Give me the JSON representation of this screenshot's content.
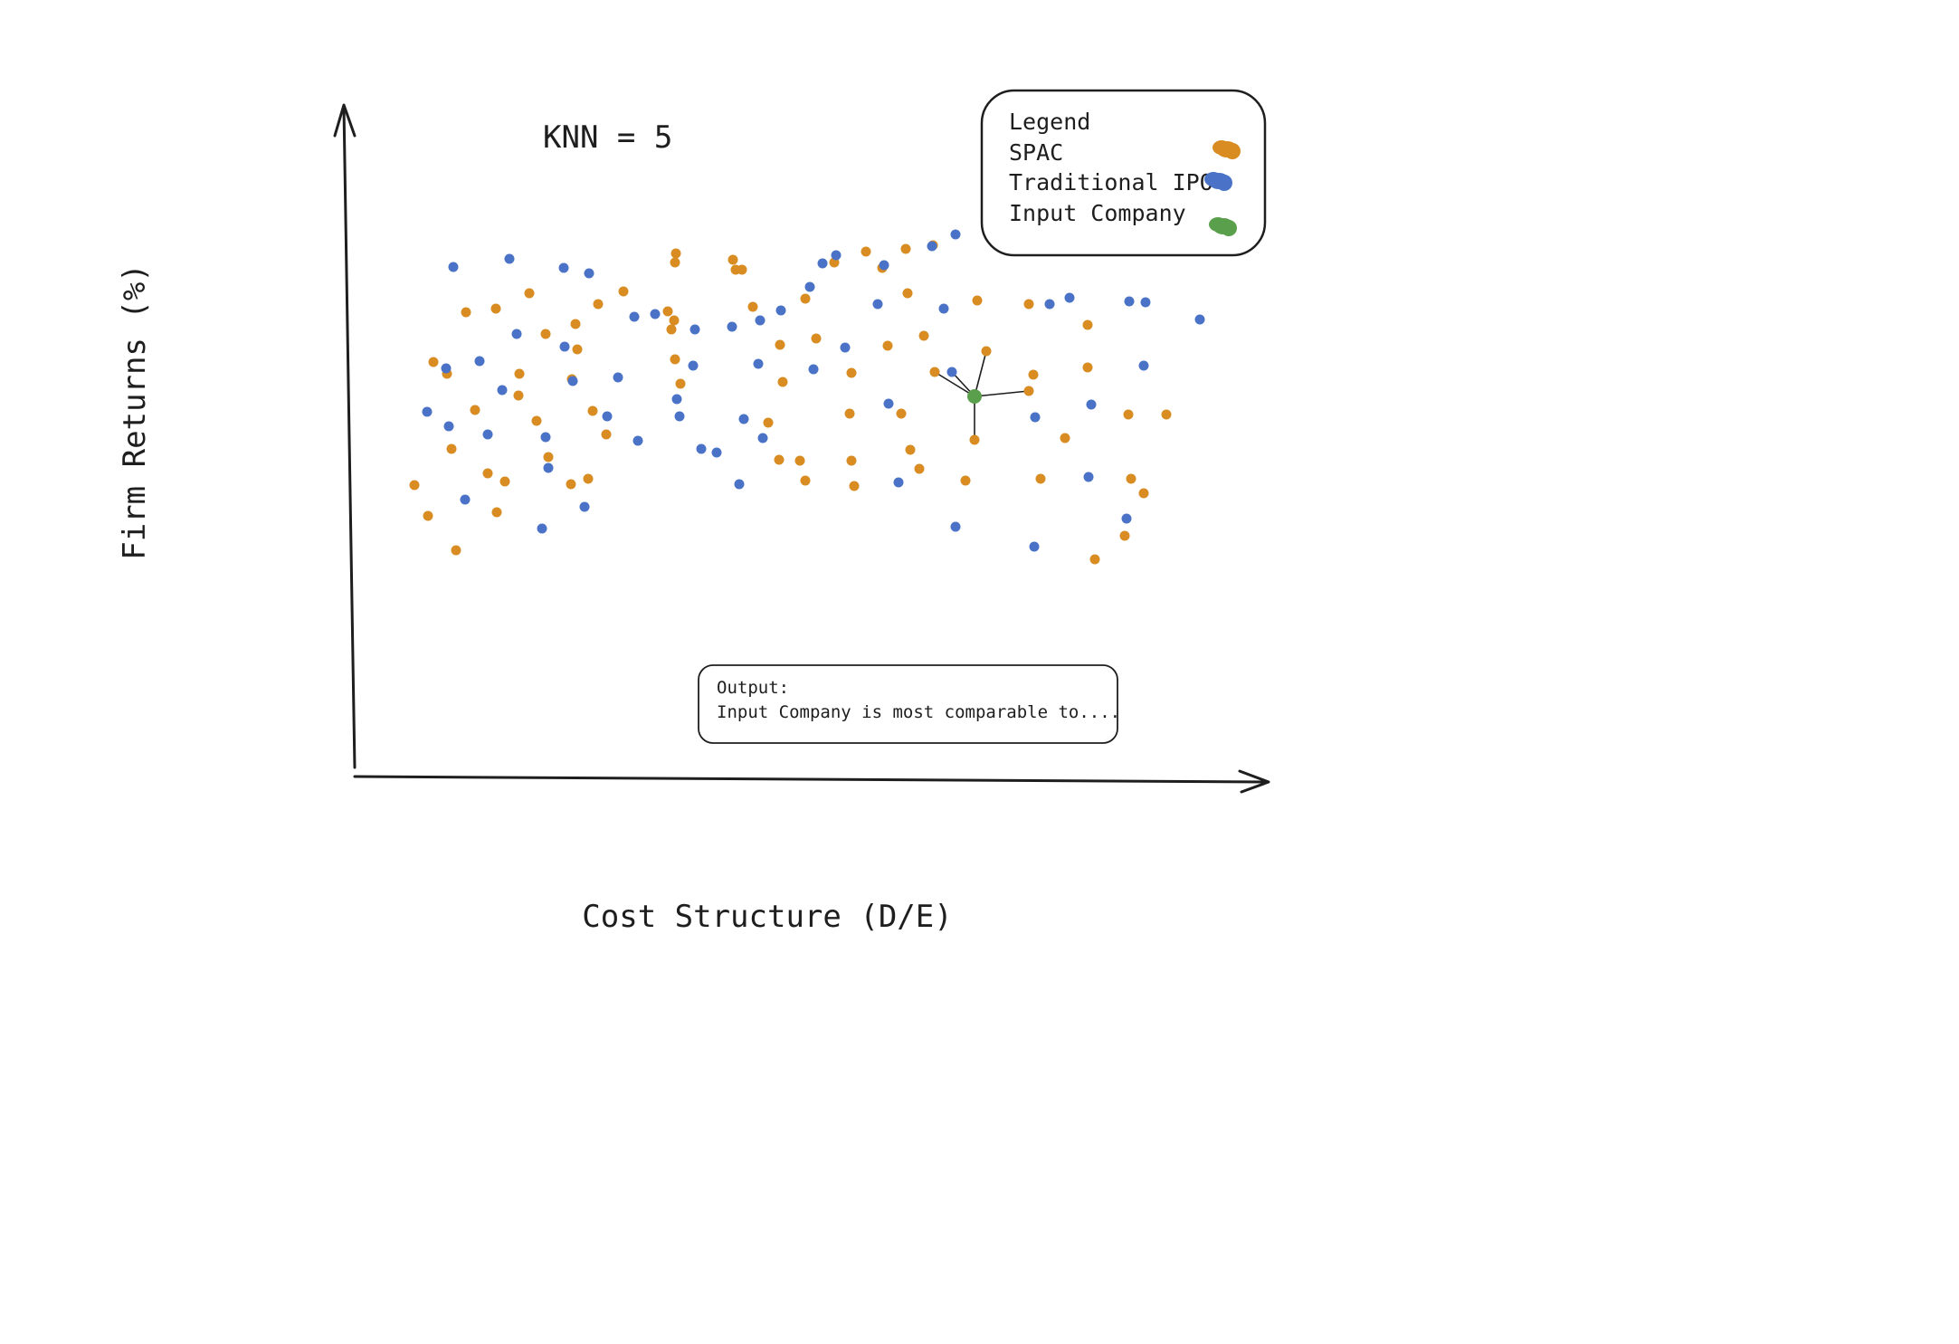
{
  "title": "KNN = 5",
  "x_axis_label": "Cost Structure (D/E)",
  "y_axis_label": "Firm Returns (%)",
  "legend": {
    "heading": "Legend",
    "entries": [
      {
        "label": "SPAC",
        "color": "#d88c22"
      },
      {
        "label": "Traditional IPO",
        "color": "#4a73c7"
      },
      {
        "label": "Input Company",
        "color": "#5a9f4b"
      }
    ]
  },
  "output": {
    "line1": "Output:",
    "line2": "Input Company is most comparable to...."
  },
  "chart_data": {
    "type": "scatter",
    "series": [
      {
        "name": "SPAC",
        "color": "#d88c22",
        "points": [
          [
            458,
            536
          ],
          [
            473,
            570
          ],
          [
            479,
            400
          ],
          [
            494,
            413
          ],
          [
            499,
            496
          ],
          [
            504,
            608
          ],
          [
            515,
            345
          ],
          [
            525,
            453
          ],
          [
            539,
            523
          ],
          [
            548,
            341
          ],
          [
            549,
            566
          ],
          [
            558,
            532
          ],
          [
            573,
            437
          ],
          [
            574,
            413
          ],
          [
            585,
            324
          ],
          [
            593,
            465
          ],
          [
            603,
            369
          ],
          [
            606,
            505
          ],
          [
            631,
            535
          ],
          [
            632,
            419
          ],
          [
            636,
            358
          ],
          [
            638,
            386
          ],
          [
            650,
            529
          ],
          [
            655,
            454
          ],
          [
            661,
            336
          ],
          [
            670,
            480
          ],
          [
            689,
            322
          ],
          [
            738,
            344
          ],
          [
            742,
            364
          ],
          [
            745,
            354
          ],
          [
            746,
            290
          ],
          [
            746,
            397
          ],
          [
            747,
            280
          ],
          [
            752,
            424
          ],
          [
            810,
            287
          ],
          [
            813,
            298
          ],
          [
            820,
            298
          ],
          [
            832,
            339
          ],
          [
            849,
            467
          ],
          [
            861,
            508
          ],
          [
            862,
            381
          ],
          [
            865,
            422
          ],
          [
            884,
            509
          ],
          [
            890,
            531
          ],
          [
            890,
            330
          ],
          [
            902,
            374
          ],
          [
            922,
            290
          ],
          [
            939,
            457
          ],
          [
            941,
            412
          ],
          [
            941,
            509
          ],
          [
            944,
            537
          ],
          [
            957,
            278
          ],
          [
            975,
            296
          ],
          [
            981,
            382
          ],
          [
            996,
            457
          ],
          [
            1001,
            275
          ],
          [
            1003,
            324
          ],
          [
            1006,
            497
          ],
          [
            1016,
            518
          ],
          [
            1021,
            371
          ],
          [
            1031,
            271
          ],
          [
            1033,
            411
          ],
          [
            1067,
            531
          ],
          [
            1077,
            486
          ],
          [
            1080,
            332
          ],
          [
            1090,
            388
          ],
          [
            1137,
            336
          ],
          [
            1137,
            432
          ],
          [
            1142,
            414
          ],
          [
            1150,
            529
          ],
          [
            1177,
            484
          ],
          [
            1202,
            359
          ],
          [
            1202,
            406
          ],
          [
            1210,
            618
          ],
          [
            1243,
            592
          ],
          [
            1247,
            458
          ],
          [
            1250,
            529
          ],
          [
            1264,
            545
          ],
          [
            1289,
            458
          ]
        ]
      },
      {
        "name": "Traditional IPO",
        "color": "#4a73c7",
        "points": [
          [
            472,
            455
          ],
          [
            493,
            407
          ],
          [
            496,
            471
          ],
          [
            501,
            295
          ],
          [
            514,
            552
          ],
          [
            530,
            399
          ],
          [
            539,
            480
          ],
          [
            555,
            431
          ],
          [
            563,
            286
          ],
          [
            571,
            369
          ],
          [
            599,
            584
          ],
          [
            603,
            483
          ],
          [
            606,
            517
          ],
          [
            623,
            296
          ],
          [
            624,
            383
          ],
          [
            633,
            421
          ],
          [
            646,
            560
          ],
          [
            651,
            302
          ],
          [
            671,
            460
          ],
          [
            683,
            417
          ],
          [
            705,
            487
          ],
          [
            701,
            350
          ],
          [
            724,
            347
          ],
          [
            748,
            441
          ],
          [
            751,
            460
          ],
          [
            766,
            404
          ],
          [
            768,
            364
          ],
          [
            775,
            496
          ],
          [
            792,
            500
          ],
          [
            809,
            361
          ],
          [
            817,
            535
          ],
          [
            822,
            463
          ],
          [
            838,
            402
          ],
          [
            840,
            354
          ],
          [
            843,
            484
          ],
          [
            863,
            343
          ],
          [
            895,
            317
          ],
          [
            899,
            408
          ],
          [
            909,
            291
          ],
          [
            924,
            282
          ],
          [
            934,
            384
          ],
          [
            970,
            336
          ],
          [
            977,
            293
          ],
          [
            982,
            446
          ],
          [
            993,
            533
          ],
          [
            1030,
            272
          ],
          [
            1043,
            341
          ],
          [
            1052,
            411
          ],
          [
            1056,
            259
          ],
          [
            1056,
            582
          ],
          [
            1143,
            604
          ],
          [
            1144,
            461
          ],
          [
            1160,
            336
          ],
          [
            1182,
            329
          ],
          [
            1203,
            527
          ],
          [
            1206,
            447
          ],
          [
            1245,
            573
          ],
          [
            1248,
            333
          ],
          [
            1264,
            404
          ],
          [
            1266,
            334
          ],
          [
            1326,
            353
          ]
        ]
      },
      {
        "name": "Input Company",
        "color": "#5a9f4b",
        "points": [
          [
            1077,
            438
          ]
        ]
      }
    ],
    "neighbors": [
      [
        1033,
        411
      ],
      [
        1052,
        411
      ],
      [
        1090,
        388
      ],
      [
        1137,
        432
      ],
      [
        1077,
        486
      ]
    ]
  }
}
